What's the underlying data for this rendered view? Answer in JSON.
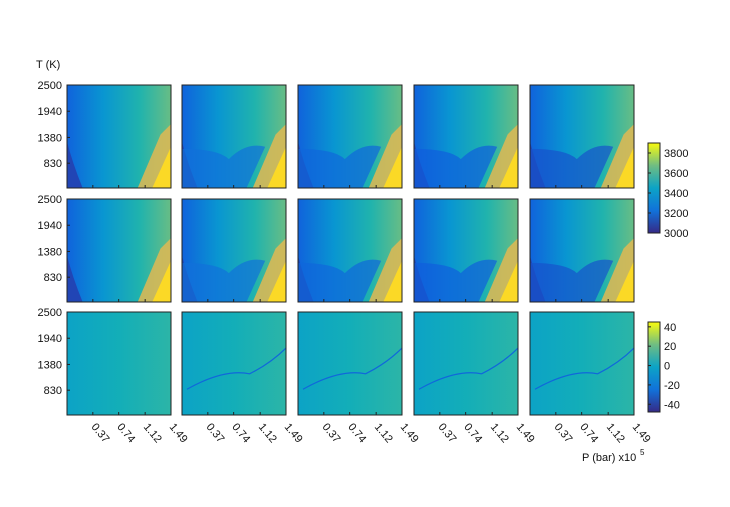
{
  "chart_data": {
    "type": "heatmap",
    "grid": {
      "rows": 3,
      "cols": 5
    },
    "y_axis": {
      "label": "T (K)",
      "ticks": [
        "2500",
        "1940",
        "1380",
        "830"
      ],
      "values": [
        2500,
        1940,
        1380,
        830
      ],
      "range": [
        300,
        2500
      ]
    },
    "x_axis": {
      "label": "P (bar) x10",
      "label_exponent": "5",
      "ticks": [
        "0.37",
        "0.74",
        "1.12",
        "1.49"
      ],
      "values": [
        0.37,
        0.74,
        1.12,
        1.49
      ],
      "range": [
        0.0,
        1.49
      ]
    },
    "colorbars": [
      {
        "applies_to_rows": [
          0,
          1
        ],
        "ticks": [
          "3800",
          "3600",
          "3400",
          "3200",
          "3000"
        ],
        "values": [
          3800,
          3600,
          3400,
          3200,
          3000
        ],
        "range": [
          3000,
          3900
        ],
        "colormap": "parula"
      },
      {
        "applies_to_rows": [
          2
        ],
        "ticks": [
          "40",
          "20",
          "0",
          "-20",
          "-40"
        ],
        "values": [
          40,
          20,
          0,
          -20,
          -40
        ],
        "range": [
          -48,
          45
        ],
        "colormap": "parula"
      }
    ]
  }
}
